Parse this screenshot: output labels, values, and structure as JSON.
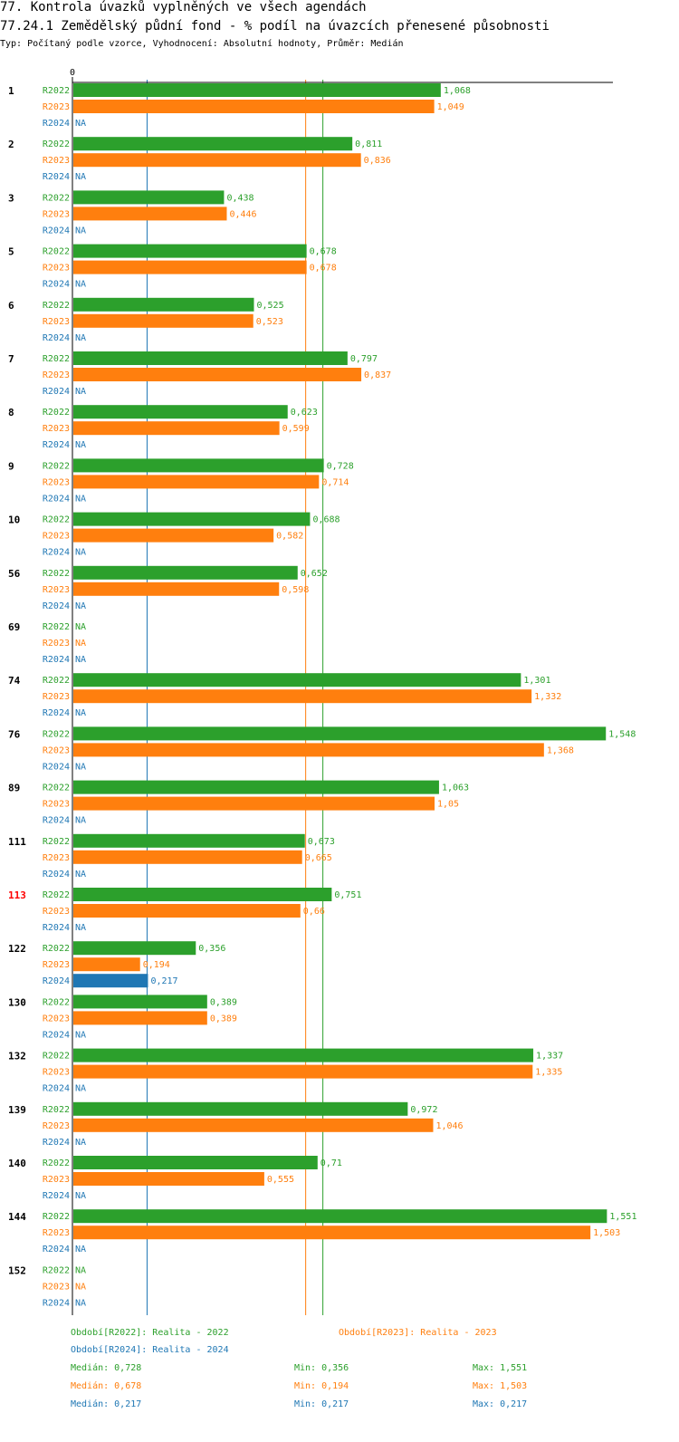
{
  "header": {
    "title": "77. Kontrola úvazků vyplněných ve všech agendách",
    "subtitle": "77.24.1 Zemědělský půdní fond - % podíl na úvazcích přenesené působnosti",
    "type_line": "Typ: Počítaný podle vzorce, Vyhodnocení: Absolutní hodnoty, Průměr: Medián"
  },
  "chart_data": {
    "type": "bar",
    "orientation": "horizontal",
    "axis_zero_label": "0",
    "xlim": [
      0,
      1.551
    ],
    "na_label": "NA",
    "categories": [
      "1",
      "2",
      "3",
      "5",
      "6",
      "7",
      "8",
      "9",
      "10",
      "56",
      "69",
      "74",
      "76",
      "89",
      "111",
      "113",
      "122",
      "130",
      "132",
      "139",
      "140",
      "144",
      "152"
    ],
    "highlighted_category": "113",
    "series": [
      {
        "name": "R2022",
        "color": "#2ca02c",
        "values": [
          1.068,
          0.811,
          0.438,
          0.678,
          0.525,
          0.797,
          0.623,
          0.728,
          0.688,
          0.652,
          null,
          1.301,
          1.548,
          1.063,
          0.673,
          0.751,
          0.356,
          0.389,
          1.337,
          0.972,
          0.71,
          1.551,
          null
        ],
        "labels": [
          "1,068",
          "0,811",
          "0,438",
          "0,678",
          "0,525",
          "0,797",
          "0,623",
          "0,728",
          "0,688",
          "0,652",
          "NA",
          "1,301",
          "1,548",
          "1,063",
          "0,673",
          "0,751",
          "0,356",
          "0,389",
          "1,337",
          "0,972",
          "0,71",
          "1,551",
          "NA"
        ]
      },
      {
        "name": "R2023",
        "color": "#ff7f0e",
        "values": [
          1.049,
          0.836,
          0.446,
          0.678,
          0.523,
          0.837,
          0.599,
          0.714,
          0.582,
          0.598,
          null,
          1.332,
          1.368,
          1.05,
          0.665,
          0.66,
          0.194,
          0.389,
          1.335,
          1.046,
          0.555,
          1.503,
          null
        ],
        "labels": [
          "1,049",
          "0,836",
          "0,446",
          "0,678",
          "0,523",
          "0,837",
          "0,599",
          "0,714",
          "0,582",
          "0,598",
          "NA",
          "1,332",
          "1,368",
          "1,05",
          "0,665",
          "0,66",
          "0,194",
          "0,389",
          "1,335",
          "1,046",
          "0,555",
          "1,503",
          "NA"
        ]
      },
      {
        "name": "R2024",
        "color": "#1f77b4",
        "values": [
          null,
          null,
          null,
          null,
          null,
          null,
          null,
          null,
          null,
          null,
          null,
          null,
          null,
          null,
          null,
          null,
          0.217,
          null,
          null,
          null,
          null,
          null,
          null
        ],
        "labels": [
          "NA",
          "NA",
          "NA",
          "NA",
          "NA",
          "NA",
          "NA",
          "NA",
          "NA",
          "NA",
          "NA",
          "NA",
          "NA",
          "NA",
          "NA",
          "NA",
          "0,217",
          "NA",
          "NA",
          "NA",
          "NA",
          "NA",
          "NA"
        ]
      }
    ],
    "median_lines": [
      {
        "series": "R2022",
        "value": 0.728,
        "color": "#2ca02c"
      },
      {
        "series": "R2023",
        "value": 0.678,
        "color": "#ff7f0e"
      },
      {
        "series": "R2024",
        "value": 0.217,
        "color": "#1f77b4"
      }
    ]
  },
  "legend": {
    "r2022": "Období[R2022]: Realita - 2022",
    "r2023": "Období[R2023]: Realita - 2023",
    "r2024": "Období[R2024]: Realita - 2024"
  },
  "stats": {
    "r2022": {
      "median": "Medián: 0,728",
      "min": "Min: 0,356",
      "max": "Max: 1,551"
    },
    "r2023": {
      "median": "Medián: 0,678",
      "min": "Min: 0,194",
      "max": "Max: 1,503"
    },
    "r2024": {
      "median": "Medián: 0,217",
      "min": "Min: 0,217",
      "max": "Max: 0,217"
    }
  },
  "colors": {
    "r2022": "#2ca02c",
    "r2023": "#ff7f0e",
    "r2024": "#1f77b4",
    "highlight": "#ff0000"
  }
}
